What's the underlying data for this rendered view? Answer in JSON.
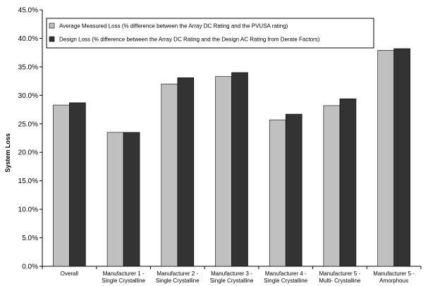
{
  "chart_data": {
    "type": "bar",
    "ylabel": "System Loss",
    "ylim": [
      0,
      45
    ],
    "ytick_step": 5,
    "y_tick_labels": [
      "0.0%",
      "5.0%",
      "10.0%",
      "15.0%",
      "20.0%",
      "25.0%",
      "30.0%",
      "35.0%",
      "40.0%",
      "45.0%"
    ],
    "grid": false,
    "legend_position": "top",
    "categories": [
      [
        "Overall"
      ],
      [
        "Manufacturer 1 -",
        "Single Crystalline"
      ],
      [
        "Manufacturer 2 -",
        "Single Crystalline"
      ],
      [
        "Manufacturer 3 -",
        "Single Crystalline"
      ],
      [
        "Manufacturer 4 -",
        "Single Crystalline"
      ],
      [
        "Manufacturer 5 -",
        "Multi- Crystalline"
      ],
      [
        "Manufacturer 5 -",
        "Amorphous"
      ]
    ],
    "series": [
      {
        "name": "Average Measured Loss (% difference between the Array DC Rating and the PVUSA rating)",
        "color": "#c0c0c0",
        "values": [
          28.3,
          23.5,
          32.0,
          33.3,
          25.7,
          28.2,
          37.9
        ]
      },
      {
        "name": "Design Loss (% difference between the Array DC Rating and the Design AC Rating from Derate Factors)",
        "color": "#333333",
        "values": [
          28.7,
          23.5,
          33.1,
          34.0,
          26.7,
          29.4,
          38.2
        ]
      }
    ]
  }
}
